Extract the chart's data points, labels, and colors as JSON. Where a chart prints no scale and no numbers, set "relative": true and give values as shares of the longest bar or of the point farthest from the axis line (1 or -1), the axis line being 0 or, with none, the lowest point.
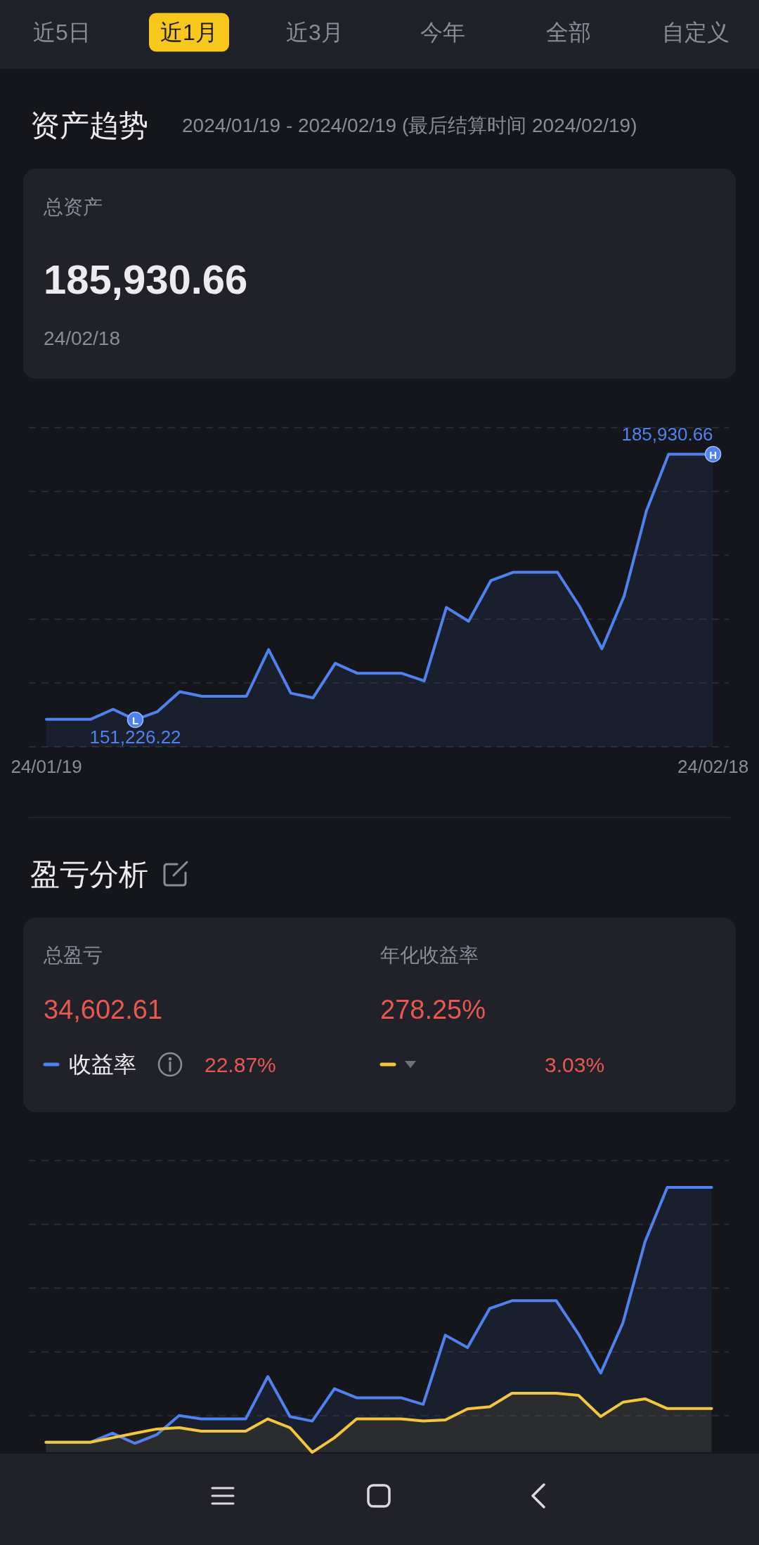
{
  "chart_data": [
    {
      "type": "other",
      "categories": [
        "近5日",
        "近1月",
        "近3月",
        "今年",
        "全部",
        "自定义"
      ],
      "colors": [
        null,
        "#f7c81b",
        null,
        null,
        null,
        null
      ]
    },
    {
      "type": "other",
      "title": "资产趋势",
      "subtitle": "2024/01/19 - 2024/02/19 (最后结算时间 2024/02/19)",
      "annotations": [
        "总资产",
        "185,930.66",
        "24/02/18"
      ]
    },
    {
      "type": "area",
      "x": [
        "2024-01-19",
        "2024-01-20",
        "2024-01-21",
        "2024-01-22",
        "2024-01-23",
        "2024-01-24",
        "2024-01-25",
        "2024-01-26",
        "2024-01-27",
        "2024-01-28",
        "2024-01-29",
        "2024-01-30",
        "2024-01-31",
        "2024-02-01",
        "2024-02-02",
        "2024-02-03",
        "2024-02-04",
        "2024-02-05",
        "2024-02-06",
        "2024-02-07",
        "2024-02-08",
        "2024-02-09",
        "2024-02-10",
        "2024-02-11",
        "2024-02-12",
        "2024-02-13",
        "2024-02-14",
        "2024-02-15",
        "2024-02-16",
        "2024-02-17",
        "2024-02-18"
      ],
      "values": [
        151300,
        151300,
        151300,
        152600,
        151226.22,
        152300,
        154900,
        154300,
        154300,
        154300,
        160400,
        154700,
        154100,
        158600,
        157300,
        157300,
        157300,
        156300,
        165900,
        164100,
        169400,
        170500,
        170500,
        170500,
        166000,
        160500,
        167400,
        178500,
        185930.66,
        185930.66,
        185930.66
      ],
      "color": "#5082ef",
      "value_labels": [
        null,
        null,
        null,
        null,
        "151,226.22",
        null,
        null,
        null,
        null,
        null,
        null,
        null,
        null,
        null,
        null,
        null,
        null,
        null,
        null,
        null,
        null,
        null,
        null,
        null,
        null,
        null,
        null,
        null,
        null,
        null,
        "185,930.66"
      ],
      "annotations": [
        {
          "text": "L",
          "x": "2024-01-23",
          "y": 151226.22
        },
        {
          "text": "H",
          "x": "2024-02-18",
          "y": 185930.66
        }
      ],
      "xlim": [
        "2024-01-18T05:00",
        "2024-02-18T17:00"
      ],
      "xticks": [
        {
          "value": "2024-01-19",
          "label": "24/01/19"
        },
        {
          "value": "2024-02-18",
          "label": "24/02/18"
        }
      ],
      "ylim": [
        147700,
        189400
      ],
      "yticks": [
        {
          "value": 147700,
          "label": null
        },
        {
          "value": 156040,
          "label": null
        },
        {
          "value": 164380,
          "label": null
        },
        {
          "value": 172720,
          "label": null
        },
        {
          "value": 181060,
          "label": null
        },
        {
          "value": 189400,
          "label": null
        }
      ],
      "grid": "y",
      "tick_labels": "x"
    },
    {
      "type": "other",
      "title": "盈亏分析",
      "annotations": [
        "总盈亏",
        "34,602.61",
        "年化收益率",
        "278.25%"
      ]
    },
    {
      "type": "area",
      "relative": true,
      "categories": [
        null,
        null,
        null,
        null,
        null,
        null,
        null,
        null,
        null,
        null,
        null,
        null,
        null,
        null,
        null,
        null,
        null,
        null,
        null,
        null,
        null,
        null,
        null,
        null,
        null,
        null,
        null,
        null,
        null,
        null,
        null
      ],
      "series": [
        {
          "name": "收益率",
          "color": "#5082ef",
          "values": [
            0.038,
            0.038,
            0.038,
            0.072,
            0.034,
            0.067,
            0.139,
            0.126,
            0.126,
            0.126,
            0.286,
            0.135,
            0.118,
            0.24,
            0.206,
            0.206,
            0.206,
            0.181,
            0.442,
            0.395,
            0.543,
            0.572,
            0.572,
            0.572,
            0.446,
            0.299,
            0.488,
            0.795,
            1,
            1,
            1
          ]
        },
        {
          "color": "#f3c63f",
          "values": [
            0.038,
            0.038,
            0.038,
            0.055,
            0.072,
            0.088,
            0.093,
            0.08,
            0.08,
            0.08,
            0.126,
            0.093,
            0,
            0.055,
            0.126,
            0.126,
            0.126,
            0.118,
            0.122,
            0.164,
            0.172,
            0.223,
            0.223,
            0.223,
            0.215,
            0.135,
            0.189,
            0.202,
            0.165,
            0.165,
            0.165
          ]
        }
      ],
      "annotations": [
        "22.87%",
        "3.03%"
      ],
      "legend": "top",
      "grid": "y",
      "tick_labels": false
    }
  ]
}
